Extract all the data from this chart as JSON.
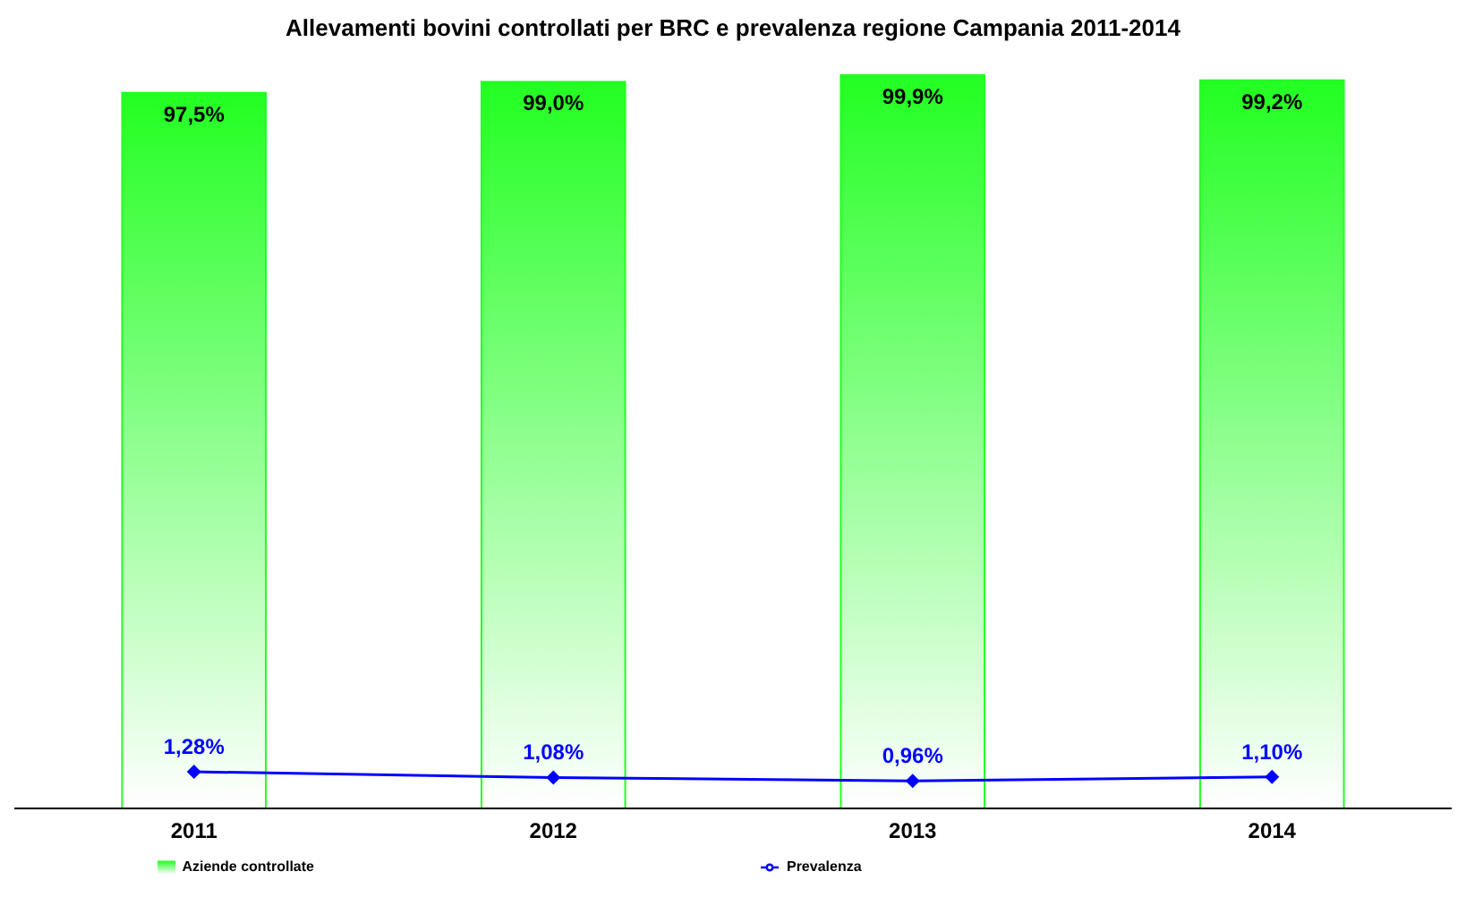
{
  "chart_data": {
    "type": "bar",
    "title": "Allevamenti bovini controllati per BRC e prevalenza regione Campania 2011-2014",
    "categories": [
      "2011",
      "2012",
      "2013",
      "2014"
    ],
    "series": [
      {
        "name": "Aziende controllate",
        "color": "#22ff22",
        "values": [
          97.5,
          99.0,
          99.9,
          99.2
        ],
        "value_labels": [
          "97,5%",
          "99,0%",
          "99,9%",
          "99,2%"
        ]
      },
      {
        "name": "Prevalenza",
        "type": "line",
        "axis": "y2",
        "color": "#0000ff",
        "marker": "diamond",
        "values": [
          1.28,
          1.08,
          0.96,
          1.1
        ],
        "value_labels": [
          "1,28%",
          "1,08%",
          "0,96%",
          "1,10%"
        ]
      }
    ],
    "legend": "bottom",
    "grid": false
  }
}
